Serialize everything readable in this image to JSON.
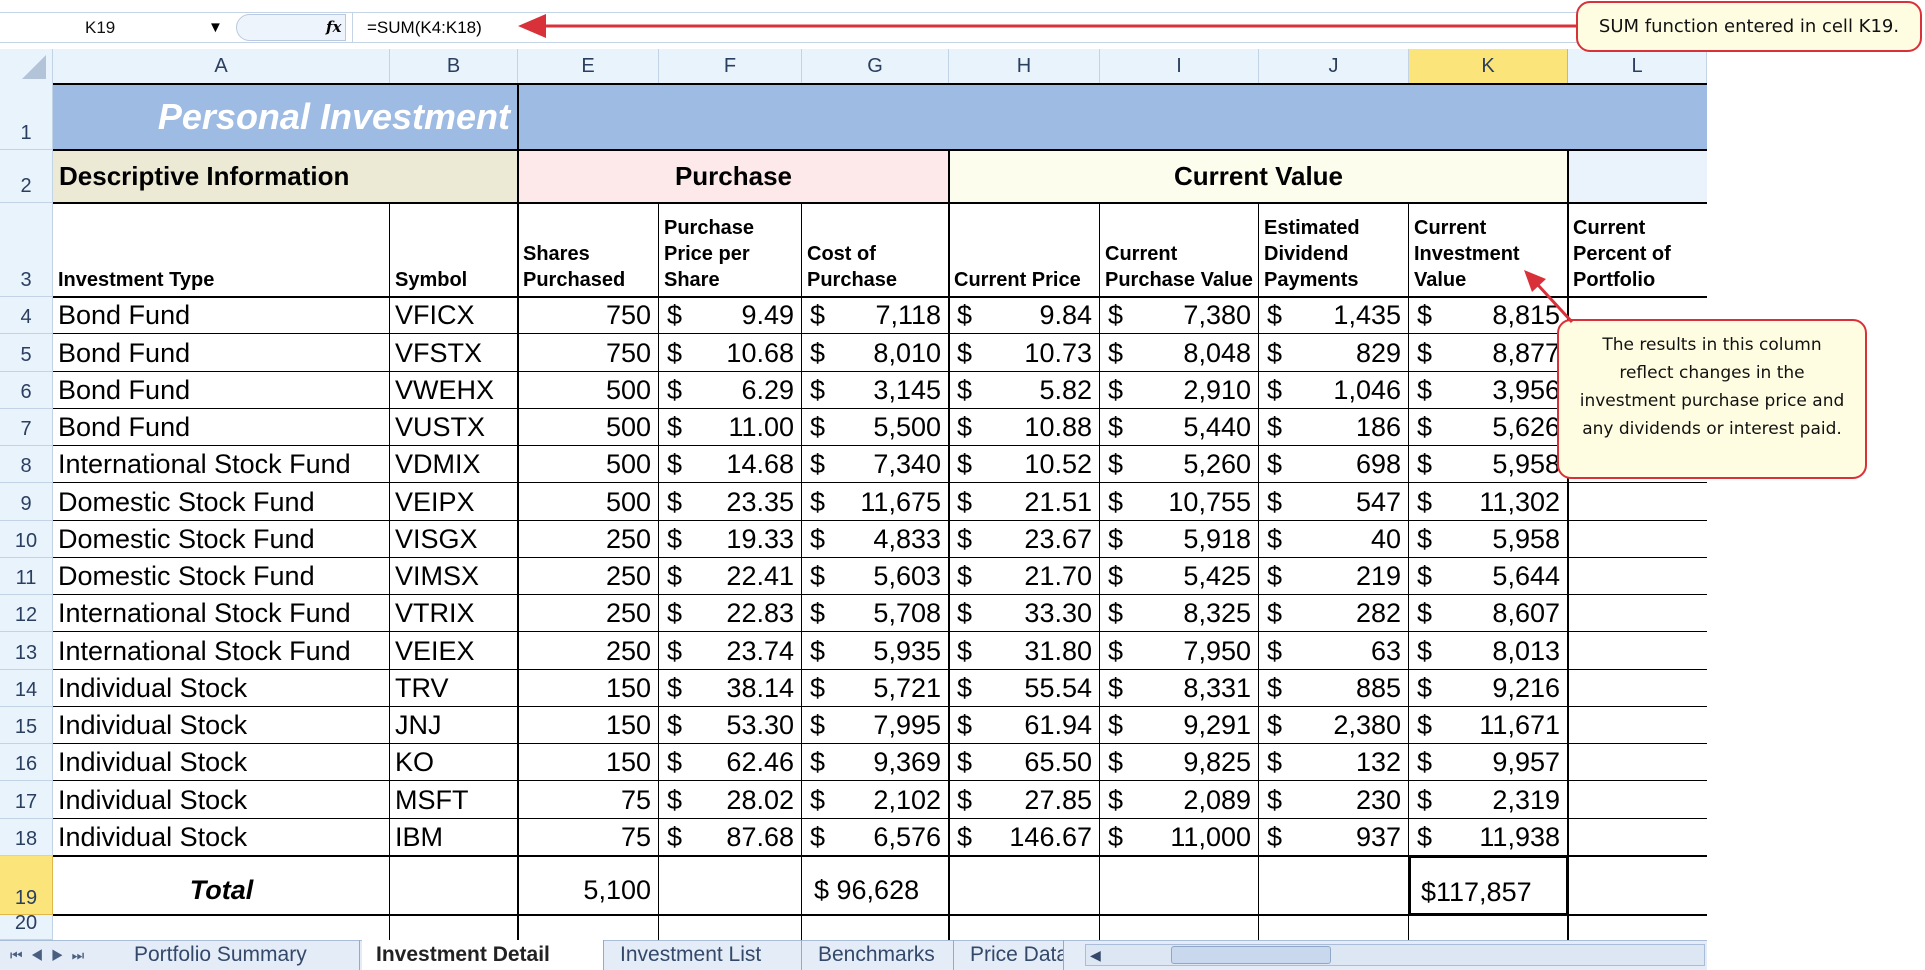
{
  "formula_bar": {
    "name_box": "K19",
    "function_icon": "fx",
    "formula": "=SUM(K4:K18)"
  },
  "columns": [
    "A",
    "B",
    "E",
    "F",
    "G",
    "H",
    "I",
    "J",
    "K",
    "L"
  ],
  "row_numbers": [
    "1",
    "2",
    "3",
    "4",
    "5",
    "6",
    "7",
    "8",
    "9",
    "10",
    "11",
    "12",
    "13",
    "14",
    "15",
    "16",
    "17",
    "18",
    "19",
    "20"
  ],
  "title": "Personal Investment",
  "sections": {
    "descriptive": "Descriptive Information",
    "purchase": "Purchase",
    "current_value": "Current Value"
  },
  "headers": [
    "Investment Type",
    "Symbol",
    "Shares Purchased",
    "Purchase Price per Share",
    "Cost of Purchase",
    "Current Price",
    "Current Purchase Value",
    "Estimated Dividend Payments",
    "Current Investment Value",
    "Current Percent of Portfolio"
  ],
  "currency_symbol": "$",
  "rows": [
    [
      "Bond Fund",
      "VFICX",
      "750",
      "9.49",
      "7,118",
      "9.84",
      "7,380",
      "1,435",
      "8,815"
    ],
    [
      "Bond Fund",
      "VFSTX",
      "750",
      "10.68",
      "8,010",
      "10.73",
      "8,048",
      "829",
      "8,877"
    ],
    [
      "Bond Fund",
      "VWEHX",
      "500",
      "6.29",
      "3,145",
      "5.82",
      "2,910",
      "1,046",
      "3,956"
    ],
    [
      "Bond Fund",
      "VUSTX",
      "500",
      "11.00",
      "5,500",
      "10.88",
      "5,440",
      "186",
      "5,626"
    ],
    [
      "International Stock Fund",
      "VDMIX",
      "500",
      "14.68",
      "7,340",
      "10.52",
      "5,260",
      "698",
      "5,958"
    ],
    [
      "Domestic Stock Fund",
      "VEIPX",
      "500",
      "23.35",
      "11,675",
      "21.51",
      "10,755",
      "547",
      "11,302"
    ],
    [
      "Domestic Stock Fund",
      "VISGX",
      "250",
      "19.33",
      "4,833",
      "23.67",
      "5,918",
      "40",
      "5,958"
    ],
    [
      "Domestic Stock Fund",
      "VIMSX",
      "250",
      "22.41",
      "5,603",
      "21.70",
      "5,425",
      "219",
      "5,644"
    ],
    [
      "International Stock Fund",
      "VTRIX",
      "250",
      "22.83",
      "5,708",
      "33.30",
      "8,325",
      "282",
      "8,607"
    ],
    [
      "International Stock Fund",
      "VEIEX",
      "250",
      "23.74",
      "5,935",
      "31.80",
      "7,950",
      "63",
      "8,013"
    ],
    [
      "Individual Stock",
      "TRV",
      "150",
      "38.14",
      "5,721",
      "55.54",
      "8,331",
      "885",
      "9,216"
    ],
    [
      "Individual Stock",
      "JNJ",
      "150",
      "53.30",
      "7,995",
      "61.94",
      "9,291",
      "2,380",
      "11,671"
    ],
    [
      "Individual Stock",
      "KO",
      "150",
      "62.46",
      "9,369",
      "65.50",
      "9,825",
      "132",
      "9,957"
    ],
    [
      "Individual Stock",
      "MSFT",
      "75",
      "28.02",
      "2,102",
      "27.85",
      "2,089",
      "230",
      "2,319"
    ],
    [
      "Individual Stock",
      "IBM",
      "75",
      "87.68",
      "6,576",
      "146.67",
      "11,000",
      "937",
      "11,938"
    ]
  ],
  "totals": {
    "label": "Total",
    "shares": "5,100",
    "cost": "$ 96,628",
    "investment_value": "$117,857"
  },
  "tabs": [
    "Portfolio Summary",
    "Investment Detail",
    "Investment List",
    "Benchmarks",
    "Price Data"
  ],
  "active_tab": "Investment Detail",
  "callouts": {
    "sum": "SUM function entered in cell K19.",
    "column": "The results in this column reflect changes in the investment purchase price and any dividends or interest paid."
  },
  "colors": {
    "title_fill": "#9dbbe3",
    "accent_arrow": "#d9313a",
    "selected_header": "#fbe57a"
  }
}
